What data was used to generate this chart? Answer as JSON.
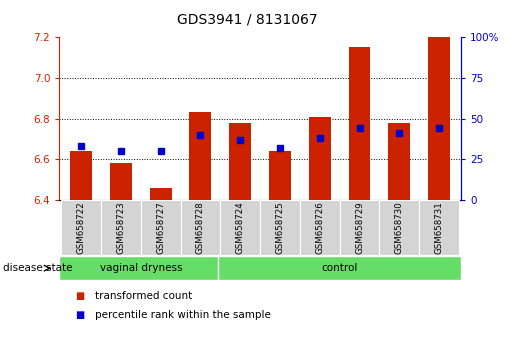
{
  "title": "GDS3941 / 8131067",
  "samples": [
    "GSM658722",
    "GSM658723",
    "GSM658727",
    "GSM658728",
    "GSM658724",
    "GSM658725",
    "GSM658726",
    "GSM658729",
    "GSM658730",
    "GSM658731"
  ],
  "red_values": [
    6.64,
    6.58,
    6.46,
    6.83,
    6.78,
    6.64,
    6.81,
    7.15,
    6.78,
    7.2
  ],
  "blue_values_pct": [
    33,
    30,
    30,
    40,
    37,
    32,
    38,
    44,
    41,
    44
  ],
  "ylim_left": [
    6.4,
    7.2
  ],
  "ylim_right": [
    0,
    100
  ],
  "yticks_left": [
    6.4,
    6.6,
    6.8,
    7.0,
    7.2
  ],
  "yticks_right": [
    0,
    25,
    50,
    75,
    100
  ],
  "groups": [
    {
      "label": "vaginal dryness",
      "start": 0,
      "end": 4
    },
    {
      "label": "control",
      "start": 4,
      "end": 10
    }
  ],
  "group_color": "#66dd66",
  "bar_color_red": "#cc2200",
  "bar_color_blue": "#0000cc",
  "baseline": 6.4,
  "background_color": "#ffffff",
  "plot_bg": "#ffffff",
  "tick_label_bg": "#d4d4d4",
  "disease_state_label": "disease state",
  "legend_red": "transformed count",
  "legend_blue": "percentile rank within the sample",
  "title_fontsize": 10,
  "tick_fontsize": 7.5,
  "legend_fontsize": 7.5
}
